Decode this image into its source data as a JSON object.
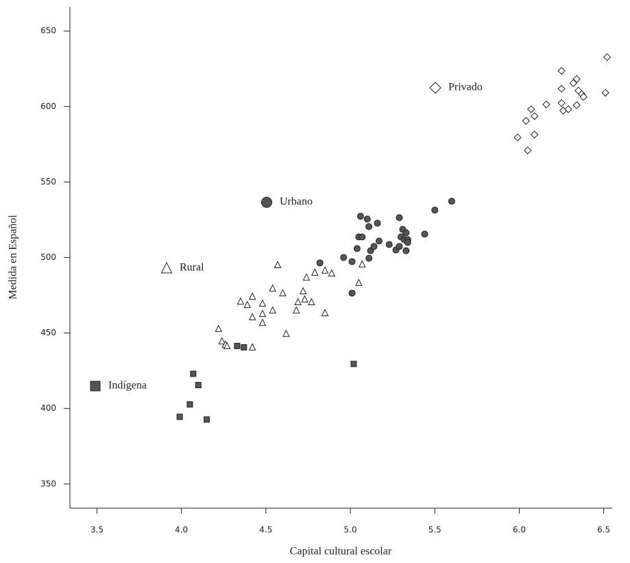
{
  "chart_data": {
    "type": "scatter",
    "xlabel": "Capital cultural escolar",
    "ylabel": "Medida en Español",
    "xlim": [
      3.34,
      6.55
    ],
    "ylim": [
      334,
      666
    ],
    "xticks": [
      3.5,
      {
        "value": 4,
        "label": "4.0"
      },
      4.5,
      {
        "value": 5,
        "label": "5.0"
      },
      5.5,
      {
        "value": 6,
        "label": "6.0"
      },
      6.5
    ],
    "yticks": [
      350,
      400,
      450,
      500,
      550,
      600,
      650
    ],
    "grid": false,
    "series": [
      {
        "name": "Indígena",
        "marker": "square",
        "color": "#555555",
        "x": [
          3.99,
          4.05,
          4.07,
          4.1,
          4.15,
          4.33,
          4.37,
          5.02
        ],
        "values": [
          394.5,
          402.7,
          423,
          415.5,
          392.7,
          441.4,
          440.5,
          429.5
        ]
      },
      {
        "name": "Rural",
        "marker": "triangle",
        "color": "#ffffff",
        "x": [
          4.22,
          4.24,
          4.26,
          4.27,
          4.35,
          4.39,
          4.42,
          4.42,
          4.42,
          4.48,
          4.48,
          4.48,
          4.54,
          4.54,
          4.57,
          4.6,
          4.62,
          4.68,
          4.69,
          4.72,
          4.73,
          4.74,
          4.77,
          4.79,
          4.85,
          4.85,
          4.89,
          5.05,
          5.07
        ],
        "values": [
          452.7,
          444.5,
          442.3,
          441.4,
          470.9,
          468.6,
          474.1,
          460.5,
          440.5,
          456.8,
          462.7,
          469.5,
          465,
          479.5,
          495,
          476.4,
          449.5,
          465,
          470.5,
          477.7,
          472.3,
          486.8,
          470.5,
          490,
          491.4,
          463.2,
          489.5,
          483.2,
          495.5
        ]
      },
      {
        "name": "Urbano",
        "marker": "circle",
        "color": "#555555",
        "x": [
          4.82,
          4.96,
          5.01,
          5.01,
          5.04,
          5.05,
          5.07,
          5.06,
          5.1,
          5.11,
          5.16,
          5.11,
          5.12,
          5.14,
          5.17,
          5.23,
          5.27,
          5.29,
          5.3,
          5.29,
          5.31,
          5.32,
          5.33,
          5.33,
          5.34,
          5.34,
          5.44,
          5.5,
          5.6
        ],
        "values": [
          496.4,
          500,
          497.3,
          476.4,
          505.9,
          513.6,
          513.6,
          527.3,
          525.5,
          520.5,
          522.7,
          499.5,
          504.5,
          507.3,
          510.9,
          508.6,
          505,
          507.3,
          513.6,
          526.4,
          518.6,
          511.8,
          516.4,
          504.5,
          511.8,
          510,
          515.5,
          531.4,
          537.3
        ]
      },
      {
        "name": "Privado",
        "marker": "diamond",
        "color": "#ffffff",
        "x": [
          5.99,
          6.05,
          6.04,
          6.07,
          6.09,
          6.09,
          6.16,
          6.25,
          6.25,
          6.25,
          6.26,
          6.29,
          6.32,
          6.34,
          6.34,
          6.35,
          6.37,
          6.38,
          6.51,
          6.52
        ],
        "values": [
          579.5,
          570.9,
          590.5,
          598.2,
          593.6,
          581.4,
          601.4,
          623.6,
          611.8,
          602.3,
          597.3,
          598.2,
          615.5,
          618.2,
          600.9,
          610.5,
          608.2,
          606.4,
          609.1,
          632.7
        ]
      }
    ]
  }
}
